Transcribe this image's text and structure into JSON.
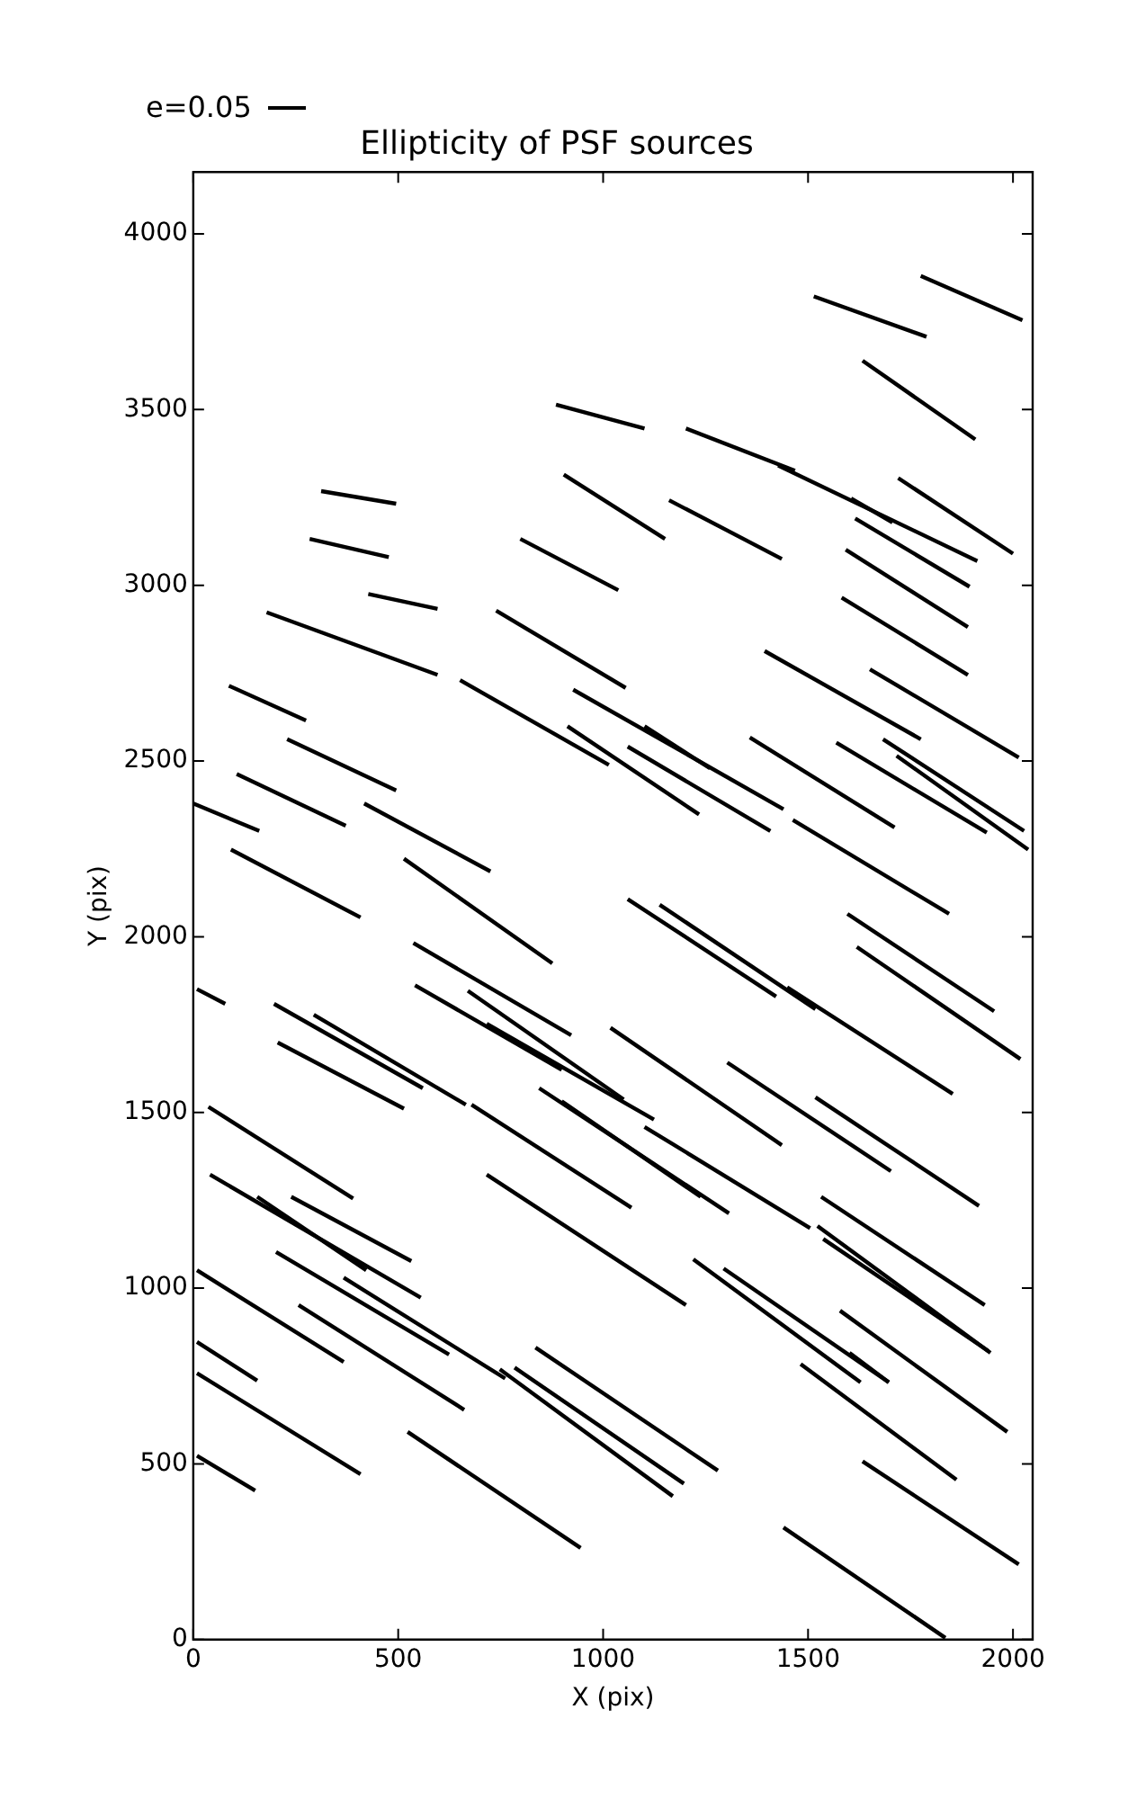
{
  "chart_data": {
    "type": "line",
    "title": "Ellipticity of PSF sources",
    "xlabel": "X (pix)",
    "ylabel": "Y (pix)",
    "annotations": [
      "e=0.05"
    ],
    "color": "#000000",
    "marker": "none",
    "line_style": "solid",
    "grid": false,
    "legend": false,
    "xlim": [
      0,
      2048
    ],
    "ylim": [
      0,
      4176
    ],
    "xticks": [
      0,
      500,
      1000,
      1500,
      2000
    ],
    "yticks": [
      0,
      500,
      1000,
      1500,
      2000,
      2500,
      3000,
      3500,
      4000
    ],
    "series": [
      {
        "x": [
          1775,
          2023
        ],
        "values": [
          3880,
          3754
        ]
      },
      {
        "x": [
          1514,
          1789
        ],
        "values": [
          3822,
          3707
        ]
      },
      {
        "x": [
          1633,
          1908
        ],
        "values": [
          3639,
          3415
        ]
      },
      {
        "x": [
          885,
          1101
        ],
        "values": [
          3514,
          3446
        ]
      },
      {
        "x": [
          1202,
          1468
        ],
        "values": [
          3446,
          3326
        ]
      },
      {
        "x": [
          1427,
          1913
        ],
        "values": [
          3341,
          3069
        ]
      },
      {
        "x": [
          1605,
          1706
        ],
        "values": [
          3247,
          3179
        ]
      },
      {
        "x": [
          1720,
          2000
        ],
        "values": [
          3305,
          3090
        ]
      },
      {
        "x": [
          904,
          1151
        ],
        "values": [
          3315,
          3132
        ]
      },
      {
        "x": [
          1161,
          1436
        ],
        "values": [
          3242,
          3075
        ]
      },
      {
        "x": [
          312,
          495
        ],
        "values": [
          3268,
          3232
        ]
      },
      {
        "x": [
          284,
          477
        ],
        "values": [
          3132,
          3080
        ]
      },
      {
        "x": [
          798,
          1037
        ],
        "values": [
          3132,
          2986
        ]
      },
      {
        "x": [
          1615,
          1894
        ],
        "values": [
          3190,
          2996
        ]
      },
      {
        "x": [
          1592,
          1890
        ],
        "values": [
          3101,
          2881
        ]
      },
      {
        "x": [
          427,
          596
        ],
        "values": [
          2975,
          2933
        ]
      },
      {
        "x": [
          1582,
          1890
        ],
        "values": [
          2965,
          2745
        ]
      },
      {
        "x": [
          1651,
          2014
        ],
        "values": [
          2761,
          2510
        ]
      },
      {
        "x": [
          179,
          596
        ],
        "values": [
          2923,
          2745
        ]
      },
      {
        "x": [
          739,
          1055
        ],
        "values": [
          2928,
          2708
        ]
      },
      {
        "x": [
          1394,
          1775
        ],
        "values": [
          2813,
          2562
        ]
      },
      {
        "x": [
          87,
          275
        ],
        "values": [
          2714,
          2615
        ]
      },
      {
        "x": [
          651,
          1014
        ],
        "values": [
          2730,
          2489
        ]
      },
      {
        "x": [
          927,
          1440
        ],
        "values": [
          2703,
          2363
        ]
      },
      {
        "x": [
          913,
          1234
        ],
        "values": [
          2599,
          2348
        ]
      },
      {
        "x": [
          1101,
          1261
        ],
        "values": [
          2599,
          2479
        ]
      },
      {
        "x": [
          1060,
          1408
        ],
        "values": [
          2541,
          2301
        ]
      },
      {
        "x": [
          1358,
          1711
        ],
        "values": [
          2567,
          2311
        ]
      },
      {
        "x": [
          1569,
          1936
        ],
        "values": [
          2552,
          2296
        ]
      },
      {
        "x": [
          1683,
          2027
        ],
        "values": [
          2562,
          2301
        ]
      },
      {
        "x": [
          1716,
          2037
        ],
        "values": [
          2515,
          2248
        ]
      },
      {
        "x": [
          106,
          372
        ],
        "values": [
          2463,
          2316
        ]
      },
      {
        "x": [
          229,
          495
        ],
        "values": [
          2562,
          2416
        ]
      },
      {
        "x": [
          0,
          161
        ],
        "values": [
          2379,
          2301
        ]
      },
      {
        "x": [
          417,
          725
        ],
        "values": [
          2379,
          2186
        ]
      },
      {
        "x": [
          92,
          408
        ],
        "values": [
          2248,
          2055
        ]
      },
      {
        "x": [
          514,
          876
        ],
        "values": [
          2222,
          1924
        ]
      },
      {
        "x": [
          1060,
          1422
        ],
        "values": [
          2107,
          1830
        ]
      },
      {
        "x": [
          1138,
          1518
        ],
        "values": [
          2091,
          1794
        ]
      },
      {
        "x": [
          1463,
          1844
        ],
        "values": [
          2332,
          2065
        ]
      },
      {
        "x": [
          1596,
          1954
        ],
        "values": [
          2065,
          1788
        ]
      },
      {
        "x": [
          1619,
          2018
        ],
        "values": [
          1971,
          1652
        ]
      },
      {
        "x": [
          1449,
          1853
        ],
        "values": [
          1856,
          1553
        ]
      },
      {
        "x": [
          1018,
          1436
        ],
        "values": [
          1741,
          1407
        ]
      },
      {
        "x": [
          1303,
          1702
        ],
        "values": [
          1642,
          1333
        ]
      },
      {
        "x": [
          1518,
          1917
        ],
        "values": [
          1543,
          1234
        ]
      },
      {
        "x": [
          537,
          922
        ],
        "values": [
          1982,
          1720
        ]
      },
      {
        "x": [
          541,
          899
        ],
        "values": [
          1862,
          1621
        ]
      },
      {
        "x": [
          670,
          1050
        ],
        "values": [
          1846,
          1537
        ]
      },
      {
        "x": [
          716,
          1124
        ],
        "values": [
          1752,
          1480
        ]
      },
      {
        "x": [
          844,
          1307
        ],
        "values": [
          1569,
          1213
        ]
      },
      {
        "x": [
          679,
          1069
        ],
        "values": [
          1522,
          1229
        ]
      },
      {
        "x": [
          1101,
          1505
        ],
        "values": [
          1459,
          1171
        ]
      },
      {
        "x": [
          197,
          560
        ],
        "values": [
          1809,
          1569
        ]
      },
      {
        "x": [
          294,
          665
        ],
        "values": [
          1778,
          1522
        ]
      },
      {
        "x": [
          206,
          514
        ],
        "values": [
          1699,
          1511
        ]
      },
      {
        "x": [
          9,
          78
        ],
        "values": [
          1851,
          1809
        ]
      },
      {
        "x": [
          37,
          390
        ],
        "values": [
          1516,
          1255
        ]
      },
      {
        "x": [
          41,
          555
        ],
        "values": [
          1323,
          973
        ]
      },
      {
        "x": [
          156,
          422
        ],
        "values": [
          1260,
          1051
        ]
      },
      {
        "x": [
          239,
          532
        ],
        "values": [
          1260,
          1077
        ]
      },
      {
        "x": [
          202,
          624
        ],
        "values": [
          1103,
          811
        ]
      },
      {
        "x": [
          367,
          761
        ],
        "values": [
          1030,
          743
        ]
      },
      {
        "x": [
          9,
          367
        ],
        "values": [
          1051,
          790
        ]
      },
      {
        "x": [
          257,
          661
        ],
        "values": [
          952,
          654
        ]
      },
      {
        "x": [
          9,
          156
        ],
        "values": [
          847,
          737
        ]
      },
      {
        "x": [
          9,
          408
        ],
        "values": [
          758,
          471
        ]
      },
      {
        "x": [
          9,
          151
        ],
        "values": [
          523,
          424
        ]
      },
      {
        "x": [
          523,
          945
        ],
        "values": [
          591,
          261
        ]
      },
      {
        "x": [
          748,
          1170
        ],
        "values": [
          769,
          408
        ]
      },
      {
        "x": [
          784,
          1197
        ],
        "values": [
          774,
          444
        ]
      },
      {
        "x": [
          835,
          1280
        ],
        "values": [
          831,
          481
        ]
      },
      {
        "x": [
          716,
          1202
        ],
        "values": [
          1323,
          952
        ]
      },
      {
        "x": [
          899,
          1238
        ],
        "values": [
          1532,
          1260
        ]
      },
      {
        "x": [
          1532,
          1931
        ],
        "values": [
          1260,
          952
        ]
      },
      {
        "x": [
          1523,
          1945
        ],
        "values": [
          1177,
          816
        ]
      },
      {
        "x": [
          1537,
          1940
        ],
        "values": [
          1140,
          821
        ]
      },
      {
        "x": [
          1578,
          1986
        ],
        "values": [
          936,
          591
        ]
      },
      {
        "x": [
          1601,
          1697
        ],
        "values": [
          816,
          732
        ]
      },
      {
        "x": [
          1220,
          1628
        ],
        "values": [
          1082,
          732
        ]
      },
      {
        "x": [
          1294,
          1697
        ],
        "values": [
          1056,
          732
        ]
      },
      {
        "x": [
          1482,
          1862
        ],
        "values": [
          784,
          455
        ]
      },
      {
        "x": [
          1633,
          2014
        ],
        "values": [
          507,
          214
        ]
      },
      {
        "x": [
          1440,
          1835
        ],
        "values": [
          319,
          5
        ]
      }
    ]
  }
}
